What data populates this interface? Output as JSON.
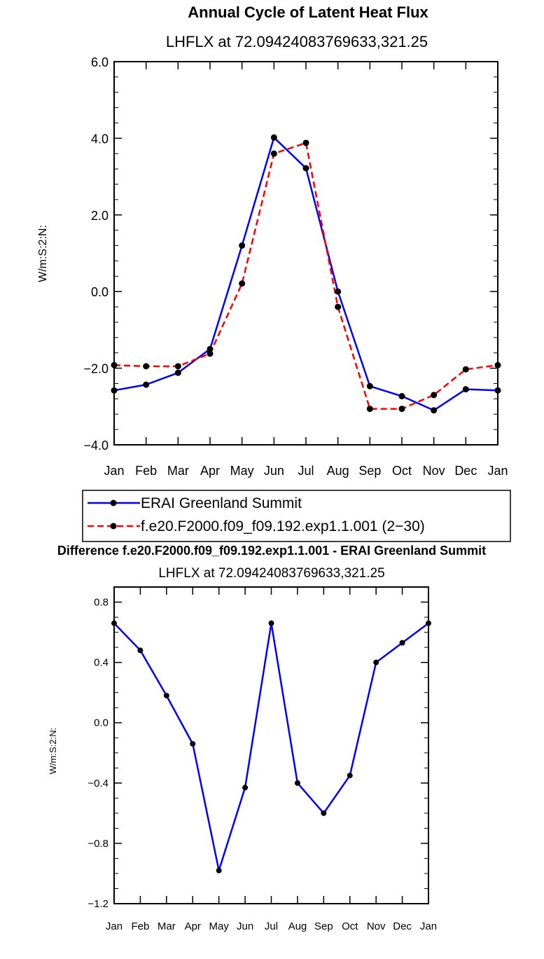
{
  "chart_data": [
    {
      "type": "line",
      "title": "Annual Cycle of Latent Heat Flux",
      "subtitle": "LHFLX  at  72.09424083769633,321.25",
      "ylabel": "W/m:S:2:N:",
      "xlabel": "",
      "categories": [
        "Jan",
        "Feb",
        "Mar",
        "Apr",
        "May",
        "Jun",
        "Jul",
        "Aug",
        "Sep",
        "Oct",
        "Nov",
        "Dec",
        "Jan"
      ],
      "ylim": [
        -4.0,
        6.0
      ],
      "yticks": [
        "−4.0",
        "−2.0",
        "0.0",
        "2.0",
        "4.0",
        "6.0"
      ],
      "series": [
        {
          "name": "ERAI Greenland Summit",
          "color": "#0000ff",
          "dash": "solid",
          "values": [
            -2.58,
            -2.43,
            -2.12,
            -1.5,
            1.2,
            4.02,
            3.22,
            0.0,
            -2.47,
            -2.73,
            -3.1,
            -2.55,
            -2.58
          ]
        },
        {
          "name": "f.e20.F2000.f09_f09.192.exp1.1.001 (2−30)",
          "color": "#ff0000",
          "dash": "dashed",
          "values": [
            -1.92,
            -1.95,
            -1.95,
            -1.62,
            0.21,
            3.6,
            3.88,
            -0.4,
            -3.06,
            -3.06,
            -2.7,
            -2.03,
            -1.92
          ]
        }
      ],
      "legend_position": "bottom"
    },
    {
      "type": "line",
      "title": "Difference f.e20.F2000.f09_f09.192.exp1.1.001 - ERAI Greenland Summit",
      "subtitle": "LHFLX  at  72.09424083769633,321.25",
      "ylabel": "W/m:S:2:N:",
      "xlabel": "",
      "categories": [
        "Jan",
        "Feb",
        "Mar",
        "Apr",
        "May",
        "Jun",
        "Jul",
        "Aug",
        "Sep",
        "Oct",
        "Nov",
        "Dec",
        "Jan"
      ],
      "ylim": [
        -1.2,
        0.9
      ],
      "yticks": [
        "−1.2",
        "−0.8",
        "−0.4",
        "0.0",
        "0.4",
        "0.8"
      ],
      "series": [
        {
          "name": "Difference",
          "color": "#0000ff",
          "dash": "solid",
          "values": [
            0.66,
            0.48,
            0.18,
            -0.14,
            -0.98,
            -0.43,
            0.66,
            -0.4,
            -0.6,
            -0.35,
            0.4,
            0.53,
            0.66
          ]
        }
      ]
    }
  ]
}
